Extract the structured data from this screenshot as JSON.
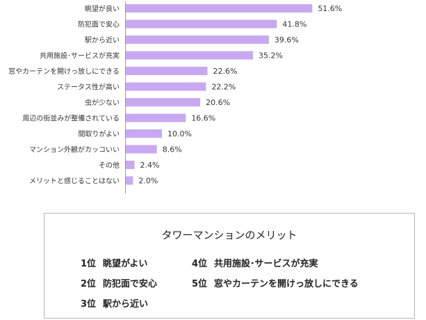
{
  "chart_data": {
    "type": "bar",
    "orientation": "horizontal",
    "categories": [
      "眺望が良い",
      "防犯面で安心",
      "駅から近い",
      "共用施設･サービスが充実",
      "窓やカーテンを開けっ放しにできる",
      "ステータス性が高い",
      "虫が少ない",
      "周辺の街並みが整備されている",
      "間取りがよい",
      "マンション外観がカッコいい",
      "その他",
      "メリットと感じることはない"
    ],
    "values": [
      51.6,
      41.8,
      39.6,
      35.2,
      22.6,
      22.2,
      20.6,
      16.6,
      10.0,
      8.6,
      2.4,
      2.0
    ],
    "value_labels": [
      "51.6%",
      "41.8%",
      "39.6%",
      "35.2%",
      "22.6%",
      "22.2%",
      "20.6%",
      "16.6%",
      "10.0%",
      "8.6%",
      "2.4%",
      "2.0%"
    ],
    "xlim": [
      0,
      60
    ],
    "grid": false,
    "colors": {
      "bar": "#c9a8f2",
      "axis": "#999999"
    }
  },
  "summary": {
    "title": "タワーマンションのメリット",
    "rankings": [
      {
        "rank": "1位",
        "label": "眺望がよい"
      },
      {
        "rank": "2位",
        "label": "防犯面で安心"
      },
      {
        "rank": "3位",
        "label": "駅から近い"
      },
      {
        "rank": "4位",
        "label": "共用施設･サービスが充実"
      },
      {
        "rank": "5位",
        "label": "窓やカーテンを開けっ放しにできる"
      }
    ]
  }
}
